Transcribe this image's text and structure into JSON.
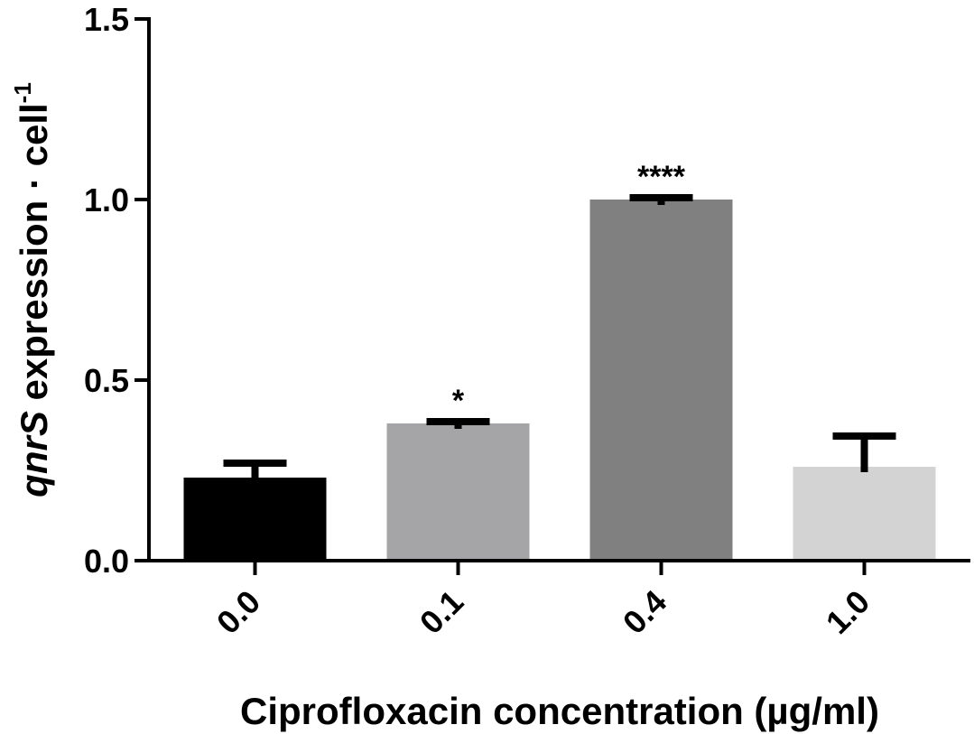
{
  "chart_data": {
    "type": "bar",
    "categories": [
      "0.0",
      "0.1",
      "0.4",
      "1.0"
    ],
    "values": [
      0.23,
      0.38,
      1.0,
      0.26
    ],
    "errors": [
      0.04,
      0.005,
      0.005,
      0.085
    ],
    "significance": [
      "",
      "*",
      "****",
      ""
    ],
    "colors": [
      "#000000",
      "#a5a5a8",
      "#808080",
      "#d3d3d3"
    ],
    "ylim": [
      0,
      1.5
    ],
    "yticks": [
      "0.0",
      "0.5",
      "1.0",
      "1.5"
    ],
    "ytick_values": [
      0,
      0.5,
      1.0,
      1.5
    ],
    "ylabel": {
      "gene": "qnrS",
      "text": " expression · cell",
      "superscript": "-1"
    },
    "xlabel": "Ciprofloxacin concentration (µg/ml)",
    "grid": false
  }
}
